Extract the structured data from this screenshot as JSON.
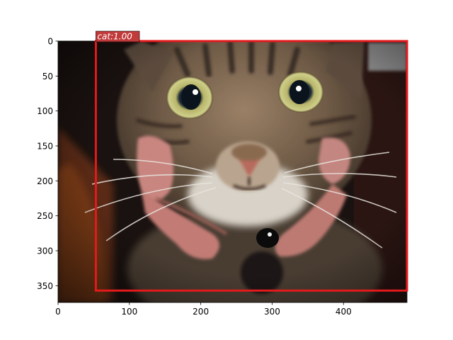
{
  "image": {
    "subject": "cat",
    "width": 489,
    "height": 374
  },
  "axes": {
    "x_ticks": [
      0,
      100,
      200,
      300,
      400
    ],
    "y_ticks": [
      0,
      50,
      100,
      150,
      200,
      250,
      300,
      350
    ]
  },
  "detections": [
    {
      "label": "cat:1.00",
      "class": "cat",
      "score": 1.0,
      "box": {
        "x1": 53,
        "y1": 0,
        "x2": 489,
        "y2": 357
      },
      "color": "#d62728"
    }
  ],
  "colors": {
    "box": "#e31a1c",
    "label_bg": "#c23b3b",
    "axis": "#000000"
  }
}
